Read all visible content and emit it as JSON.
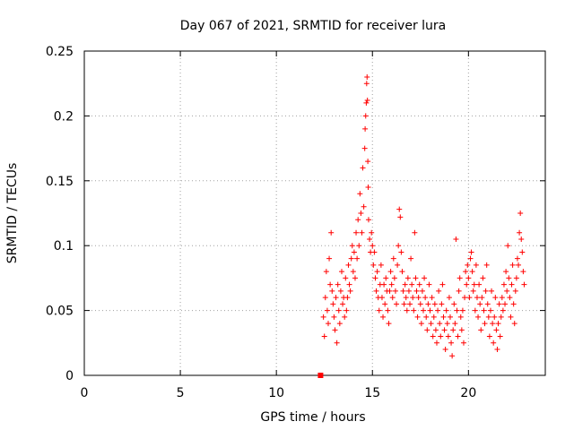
{
  "chart_data": {
    "type": "scatter",
    "title": "Day 067 of 2021, SRMTID for receiver lura",
    "xlabel": "GPS time / hours",
    "ylabel": "SRMTID / TECUs",
    "xlim": [
      0,
      24
    ],
    "ylim": [
      0,
      0.25
    ],
    "xticks": [
      0,
      5,
      10,
      15,
      20
    ],
    "xtick_labels": [
      "0",
      "5",
      "10",
      "15",
      "20"
    ],
    "yticks": [
      0,
      0.05,
      0.1,
      0.15,
      0.2,
      0.25
    ],
    "ytick_labels": [
      "0",
      "0.05",
      "0.1",
      "0.15",
      "0.2",
      "0.25"
    ],
    "grid": true,
    "marker": "+",
    "color": "#ff0000",
    "marker_square": {
      "x": 12.3,
      "y": 0.0
    },
    "series": [
      {
        "name": "lura",
        "points": [
          [
            12.45,
            0.045
          ],
          [
            12.5,
            0.03
          ],
          [
            12.55,
            0.06
          ],
          [
            12.6,
            0.08
          ],
          [
            12.65,
            0.05
          ],
          [
            12.7,
            0.04
          ],
          [
            12.75,
            0.09
          ],
          [
            12.8,
            0.07
          ],
          [
            12.85,
            0.11
          ],
          [
            12.9,
            0.065
          ],
          [
            12.95,
            0.055
          ],
          [
            13.0,
            0.045
          ],
          [
            13.05,
            0.035
          ],
          [
            13.1,
            0.06
          ],
          [
            13.15,
            0.025
          ],
          [
            13.2,
            0.07
          ],
          [
            13.25,
            0.05
          ],
          [
            13.3,
            0.04
          ],
          [
            13.35,
            0.065
          ],
          [
            13.4,
            0.08
          ],
          [
            13.45,
            0.055
          ],
          [
            13.5,
            0.06
          ],
          [
            13.55,
            0.045
          ],
          [
            13.6,
            0.075
          ],
          [
            13.65,
            0.05
          ],
          [
            13.7,
            0.06
          ],
          [
            13.75,
            0.085
          ],
          [
            13.8,
            0.07
          ],
          [
            13.85,
            0.065
          ],
          [
            13.9,
            0.09
          ],
          [
            13.95,
            0.1
          ],
          [
            14.0,
            0.08
          ],
          [
            14.05,
            0.095
          ],
          [
            14.1,
            0.075
          ],
          [
            14.15,
            0.11
          ],
          [
            14.2,
            0.09
          ],
          [
            14.25,
            0.12
          ],
          [
            14.3,
            0.1
          ],
          [
            14.35,
            0.14
          ],
          [
            14.4,
            0.125
          ],
          [
            14.45,
            0.11
          ],
          [
            14.5,
            0.16
          ],
          [
            14.55,
            0.13
          ],
          [
            14.6,
            0.175
          ],
          [
            14.62,
            0.19
          ],
          [
            14.65,
            0.2
          ],
          [
            14.68,
            0.21
          ],
          [
            14.7,
            0.225
          ],
          [
            14.72,
            0.23
          ],
          [
            14.74,
            0.212
          ],
          [
            14.76,
            0.165
          ],
          [
            14.78,
            0.145
          ],
          [
            14.8,
            0.12
          ],
          [
            14.85,
            0.105
          ],
          [
            14.9,
            0.095
          ],
          [
            14.95,
            0.11
          ],
          [
            15.0,
            0.1
          ],
          [
            15.05,
            0.085
          ],
          [
            15.1,
            0.095
          ],
          [
            15.15,
            0.075
          ],
          [
            15.2,
            0.065
          ],
          [
            15.25,
            0.08
          ],
          [
            15.3,
            0.06
          ],
          [
            15.35,
            0.05
          ],
          [
            15.4,
            0.07
          ],
          [
            15.45,
            0.085
          ],
          [
            15.5,
            0.06
          ],
          [
            15.55,
            0.045
          ],
          [
            15.6,
            0.07
          ],
          [
            15.65,
            0.055
          ],
          [
            15.7,
            0.075
          ],
          [
            15.75,
            0.065
          ],
          [
            15.8,
            0.05
          ],
          [
            15.85,
            0.04
          ],
          [
            15.9,
            0.065
          ],
          [
            15.95,
            0.08
          ],
          [
            16.0,
            0.07
          ],
          [
            16.05,
            0.06
          ],
          [
            16.1,
            0.09
          ],
          [
            16.15,
            0.075
          ],
          [
            16.2,
            0.065
          ],
          [
            16.25,
            0.055
          ],
          [
            16.3,
            0.085
          ],
          [
            16.35,
            0.1
          ],
          [
            16.4,
            0.128
          ],
          [
            16.45,
            0.122
          ],
          [
            16.5,
            0.095
          ],
          [
            16.55,
            0.08
          ],
          [
            16.6,
            0.065
          ],
          [
            16.65,
            0.055
          ],
          [
            16.7,
            0.07
          ],
          [
            16.75,
            0.06
          ],
          [
            16.8,
            0.05
          ],
          [
            16.85,
            0.075
          ],
          [
            16.9,
            0.065
          ],
          [
            16.95,
            0.055
          ],
          [
            17.0,
            0.09
          ],
          [
            17.05,
            0.07
          ],
          [
            17.1,
            0.06
          ],
          [
            17.15,
            0.05
          ],
          [
            17.2,
            0.11
          ],
          [
            17.25,
            0.075
          ],
          [
            17.3,
            0.065
          ],
          [
            17.35,
            0.045
          ],
          [
            17.4,
            0.06
          ],
          [
            17.45,
            0.07
          ],
          [
            17.5,
            0.055
          ],
          [
            17.55,
            0.04
          ],
          [
            17.6,
            0.065
          ],
          [
            17.65,
            0.05
          ],
          [
            17.7,
            0.075
          ],
          [
            17.75,
            0.06
          ],
          [
            17.8,
            0.045
          ],
          [
            17.85,
            0.035
          ],
          [
            17.9,
            0.055
          ],
          [
            17.95,
            0.07
          ],
          [
            18.0,
            0.05
          ],
          [
            18.05,
            0.04
          ],
          [
            18.1,
            0.06
          ],
          [
            18.15,
            0.03
          ],
          [
            18.2,
            0.045
          ],
          [
            18.25,
            0.055
          ],
          [
            18.3,
            0.035
          ],
          [
            18.35,
            0.025
          ],
          [
            18.4,
            0.05
          ],
          [
            18.45,
            0.065
          ],
          [
            18.5,
            0.04
          ],
          [
            18.55,
            0.03
          ],
          [
            18.6,
            0.055
          ],
          [
            18.65,
            0.07
          ],
          [
            18.7,
            0.045
          ],
          [
            18.75,
            0.035
          ],
          [
            18.8,
            0.02
          ],
          [
            18.85,
            0.05
          ],
          [
            18.9,
            0.04
          ],
          [
            18.95,
            0.03
          ],
          [
            19.0,
            0.06
          ],
          [
            19.05,
            0.045
          ],
          [
            19.1,
            0.025
          ],
          [
            19.15,
            0.015
          ],
          [
            19.2,
            0.035
          ],
          [
            19.25,
            0.055
          ],
          [
            19.3,
            0.04
          ],
          [
            19.35,
            0.105
          ],
          [
            19.4,
            0.05
          ],
          [
            19.45,
            0.03
          ],
          [
            19.5,
            0.065
          ],
          [
            19.55,
            0.075
          ],
          [
            19.6,
            0.045
          ],
          [
            19.65,
            0.035
          ],
          [
            19.7,
            0.05
          ],
          [
            19.75,
            0.025
          ],
          [
            19.8,
            0.06
          ],
          [
            19.85,
            0.08
          ],
          [
            19.9,
            0.07
          ],
          [
            19.95,
            0.085
          ],
          [
            20.0,
            0.075
          ],
          [
            20.05,
            0.06
          ],
          [
            20.1,
            0.09
          ],
          [
            20.15,
            0.095
          ],
          [
            20.2,
            0.08
          ],
          [
            20.25,
            0.065
          ],
          [
            20.3,
            0.07
          ],
          [
            20.35,
            0.05
          ],
          [
            20.4,
            0.085
          ],
          [
            20.45,
            0.06
          ],
          [
            20.5,
            0.045
          ],
          [
            20.55,
            0.07
          ],
          [
            20.6,
            0.055
          ],
          [
            20.65,
            0.035
          ],
          [
            20.7,
            0.06
          ],
          [
            20.75,
            0.075
          ],
          [
            20.8,
            0.05
          ],
          [
            20.85,
            0.04
          ],
          [
            20.9,
            0.065
          ],
          [
            20.95,
            0.085
          ],
          [
            21.0,
            0.055
          ],
          [
            21.05,
            0.045
          ],
          [
            21.1,
            0.03
          ],
          [
            21.15,
            0.05
          ],
          [
            21.2,
            0.065
          ],
          [
            21.25,
            0.04
          ],
          [
            21.3,
            0.025
          ],
          [
            21.35,
            0.045
          ],
          [
            21.4,
            0.06
          ],
          [
            21.45,
            0.035
          ],
          [
            21.5,
            0.02
          ],
          [
            21.55,
            0.04
          ],
          [
            21.6,
            0.055
          ],
          [
            21.65,
            0.03
          ],
          [
            21.7,
            0.045
          ],
          [
            21.75,
            0.06
          ],
          [
            21.8,
            0.05
          ],
          [
            21.85,
            0.07
          ],
          [
            21.9,
            0.055
          ],
          [
            21.95,
            0.08
          ],
          [
            22.0,
            0.065
          ],
          [
            22.05,
            0.1
          ],
          [
            22.1,
            0.075
          ],
          [
            22.15,
            0.06
          ],
          [
            22.2,
            0.045
          ],
          [
            22.25,
            0.07
          ],
          [
            22.3,
            0.085
          ],
          [
            22.35,
            0.055
          ],
          [
            22.4,
            0.04
          ],
          [
            22.45,
            0.065
          ],
          [
            22.5,
            0.075
          ],
          [
            22.55,
            0.09
          ],
          [
            22.6,
            0.085
          ],
          [
            22.65,
            0.11
          ],
          [
            22.7,
            0.125
          ],
          [
            22.75,
            0.105
          ],
          [
            22.8,
            0.095
          ],
          [
            22.85,
            0.08
          ],
          [
            22.9,
            0.07
          ]
        ]
      }
    ]
  }
}
